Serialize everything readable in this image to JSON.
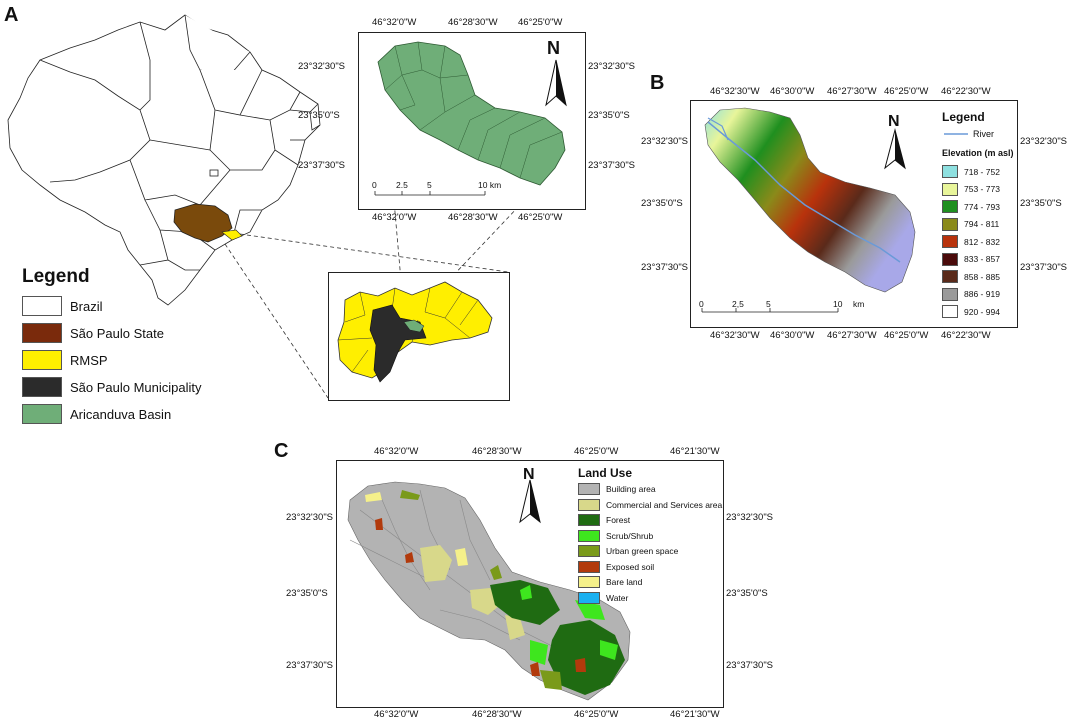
{
  "panels": {
    "a": {
      "letter": "A"
    },
    "b": {
      "letter": "B"
    },
    "c": {
      "letter": "C"
    }
  },
  "legend_a": {
    "title": "Legend",
    "items": [
      {
        "label": "Brazil",
        "color": "#ffffff"
      },
      {
        "label": "São Paulo State",
        "color": "#7a2a0c"
      },
      {
        "label": "RMSP",
        "color": "#ffef00"
      },
      {
        "label": "São Paulo Municipality",
        "color": "#2b2b2b"
      },
      {
        "label": "Aricanduva Basin",
        "color": "#6fae78"
      }
    ]
  },
  "inset_basin": {
    "top_ticks": [
      "46°32'0\"W",
      "46°28'30\"W",
      "46°25'0\"W"
    ],
    "bottom_ticks": [
      "46°32'0\"W",
      "46°28'30\"W",
      "46°25'0\"W"
    ],
    "left_ticks": [
      "23°32'30\"S",
      "23°35'0\"S",
      "23°37'30\"S"
    ],
    "right_ticks": [
      "23°32'30\"S",
      "23°35'0\"S",
      "23°37'30\"S"
    ],
    "scale": [
      "0",
      "2.5",
      "5",
      "10 km"
    ],
    "north": "N"
  },
  "panel_b": {
    "top_ticks": [
      "46°32'30\"W",
      "46°30'0\"W",
      "46°27'30\"W",
      "46°25'0\"W",
      "46°22'30\"W"
    ],
    "bottom_ticks": [
      "46°32'30\"W",
      "46°30'0\"W",
      "46°27'30\"W",
      "46°25'0\"W",
      "46°22'30\"W"
    ],
    "left_ticks": [
      "23°32'30\"S",
      "23°35'0\"S",
      "23°37'30\"S"
    ],
    "right_ticks": [
      "23°32'30\"S",
      "23°35'0\"S",
      "23°37'30\"S"
    ],
    "scale": [
      "0",
      "2,5",
      "5",
      "10",
      "km"
    ],
    "north": "N",
    "legend_title": "Legend",
    "river_label": "River",
    "elev_title": "Elevation (m asl)",
    "elevation": [
      {
        "label": "718 - 752",
        "color": "#8ee0e0"
      },
      {
        "label": "753 - 773",
        "color": "#e8f59a"
      },
      {
        "label": "774 - 793",
        "color": "#1f8f1f"
      },
      {
        "label": "794 - 811",
        "color": "#8a8a1a"
      },
      {
        "label": "812 - 832",
        "color": "#b8320c"
      },
      {
        "label": "833 - 857",
        "color": "#4a0a0a"
      },
      {
        "label": "858 - 885",
        "color": "#5a2a1a"
      },
      {
        "label": "886 - 919",
        "color": "#9a9a9a"
      },
      {
        "label": "920 - 994",
        "color": "#ffffff"
      }
    ]
  },
  "panel_c": {
    "top_ticks": [
      "46°32'0\"W",
      "46°28'30\"W",
      "46°25'0\"W",
      "46°21'30\"W"
    ],
    "bottom_ticks": [
      "46°32'0\"W",
      "46°28'30\"W",
      "46°25'0\"W",
      "46°21'30\"W"
    ],
    "left_ticks": [
      "23°32'30\"S",
      "23°35'0\"S",
      "23°37'30\"S"
    ],
    "right_ticks": [
      "23°32'30\"S",
      "23°35'0\"S",
      "23°37'30\"S"
    ],
    "north": "N",
    "legend_title": "Land Use",
    "landuse": [
      {
        "label": "Building area",
        "color": "#b3b3b3"
      },
      {
        "label": "Commercial and Services area",
        "color": "#d8d88a"
      },
      {
        "label": "Forest",
        "color": "#1f6b12"
      },
      {
        "label": "Scrub/Shrub",
        "color": "#3ee61e"
      },
      {
        "label": "Urban green space",
        "color": "#7a9a1a"
      },
      {
        "label": "Exposed soil",
        "color": "#b23a0c"
      },
      {
        "label": "Bare land",
        "color": "#f5f08a"
      },
      {
        "label": "Water",
        "color": "#1ab0f0"
      }
    ]
  }
}
